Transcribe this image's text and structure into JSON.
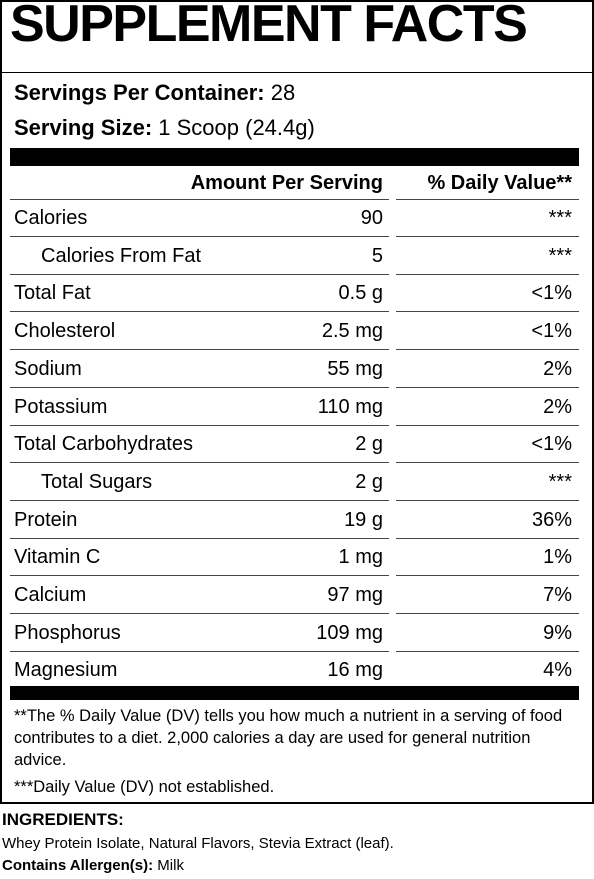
{
  "title": "SUPPLEMENT FACTS",
  "servings_per_container": {
    "label": "Servings Per Container:",
    "value": "28"
  },
  "serving_size": {
    "label": "Serving Size:",
    "value": "1 Scoop (24.4g)"
  },
  "table": {
    "header": {
      "amount": "Amount Per Serving",
      "dv": "% Daily Value**"
    },
    "rows": [
      {
        "name": "Calories",
        "amount": "90",
        "dv": "***"
      },
      {
        "name": "Calories From Fat",
        "amount": "5",
        "dv": "***",
        "indent": true
      },
      {
        "name": "Total Fat",
        "amount": "0.5 g",
        "dv": "<1%"
      },
      {
        "name": "Cholesterol",
        "amount": "2.5 mg",
        "dv": "<1%"
      },
      {
        "name": "Sodium",
        "amount": "55 mg",
        "dv": "2%"
      },
      {
        "name": "Potassium",
        "amount": "110 mg",
        "dv": "2%"
      },
      {
        "name": "Total Carbohydrates",
        "amount": "2 g",
        "dv": "<1%"
      },
      {
        "name": "Total Sugars",
        "amount": "2 g",
        "dv": "***",
        "indent": true
      },
      {
        "name": "Protein",
        "amount": "19 g",
        "dv": "36%"
      },
      {
        "name": "Vitamin C",
        "amount": "1 mg",
        "dv": "1%"
      },
      {
        "name": "Calcium",
        "amount": "97 mg",
        "dv": "7%"
      },
      {
        "name": "Phosphorus",
        "amount": "109 mg",
        "dv": "9%"
      },
      {
        "name": "Magnesium",
        "amount": "16 mg",
        "dv": "4%"
      }
    ]
  },
  "footnotes": [
    "**The % Daily Value (DV) tells you how much a nutrient in a serving of food contributes to a diet. 2,000 calories a day are used for general nutrition advice.",
    "***Daily Value (DV) not established."
  ],
  "ingredients": {
    "label": "INGREDIENTS:",
    "text": "Whey Protein Isolate, Natural Flavors, Stevia Extract (leaf).",
    "allergen_label": "Contains Allergen(s):",
    "allergen_value": "Milk"
  }
}
